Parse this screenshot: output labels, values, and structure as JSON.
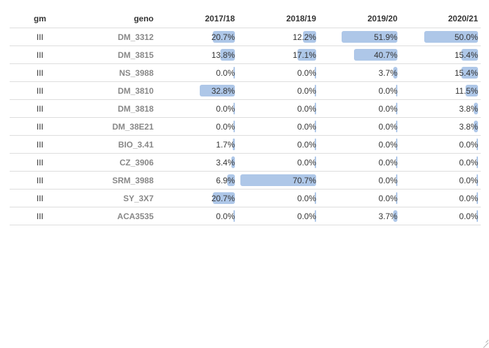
{
  "table": {
    "columns": [
      "gm",
      "geno",
      "2017/18",
      "2018/19",
      "2019/20",
      "2020/21"
    ],
    "rows": [
      {
        "gm": "III",
        "geno": "DM_3312",
        "values": [
          20.7,
          12.2,
          51.9,
          50.0
        ],
        "labels": [
          "20.7%",
          "12.2%",
          "51.9%",
          "50.0%"
        ]
      },
      {
        "gm": "III",
        "geno": "DM_3815",
        "values": [
          13.8,
          17.1,
          40.7,
          15.4
        ],
        "labels": [
          "13.8%",
          "17.1%",
          "40.7%",
          "15.4%"
        ]
      },
      {
        "gm": "III",
        "geno": "NS_3988",
        "values": [
          0.0,
          0.0,
          3.7,
          15.4
        ],
        "labels": [
          "0.0%",
          "0.0%",
          "3.7%",
          "15.4%"
        ]
      },
      {
        "gm": "III",
        "geno": "DM_3810",
        "values": [
          32.8,
          0.0,
          0.0,
          11.5
        ],
        "labels": [
          "32.8%",
          "0.0%",
          "0.0%",
          "11.5%"
        ]
      },
      {
        "gm": "III",
        "geno": "DM_3818",
        "values": [
          0.0,
          0.0,
          0.0,
          3.8
        ],
        "labels": [
          "0.0%",
          "0.0%",
          "0.0%",
          "3.8%"
        ]
      },
      {
        "gm": "III",
        "geno": "DM_38E21",
        "values": [
          0.0,
          0.0,
          0.0,
          3.8
        ],
        "labels": [
          "0.0%",
          "0.0%",
          "0.0%",
          "3.8%"
        ]
      },
      {
        "gm": "III",
        "geno": "BIO_3.41",
        "values": [
          1.7,
          0.0,
          0.0,
          0.0
        ],
        "labels": [
          "1.7%",
          "0.0%",
          "0.0%",
          "0.0%"
        ]
      },
      {
        "gm": "III",
        "geno": "CZ_3906",
        "values": [
          3.4,
          0.0,
          0.0,
          0.0
        ],
        "labels": [
          "3.4%",
          "0.0%",
          "0.0%",
          "0.0%"
        ]
      },
      {
        "gm": "III",
        "geno": "SRM_3988",
        "values": [
          6.9,
          70.7,
          0.0,
          0.0
        ],
        "labels": [
          "6.9%",
          "70.7%",
          "0.0%",
          "0.0%"
        ]
      },
      {
        "gm": "III",
        "geno": "SY_3X7",
        "values": [
          20.7,
          0.0,
          0.0,
          0.0
        ],
        "labels": [
          "20.7%",
          "0.0%",
          "0.0%",
          "0.0%"
        ]
      },
      {
        "gm": "III",
        "geno": "ACA3535",
        "values": [
          0.0,
          0.0,
          3.7,
          0.0
        ],
        "labels": [
          "0.0%",
          "0.0%",
          "3.7%",
          "0.0%"
        ]
      }
    ],
    "bar_max": 70.7,
    "bar_color": "#aec7e8"
  }
}
